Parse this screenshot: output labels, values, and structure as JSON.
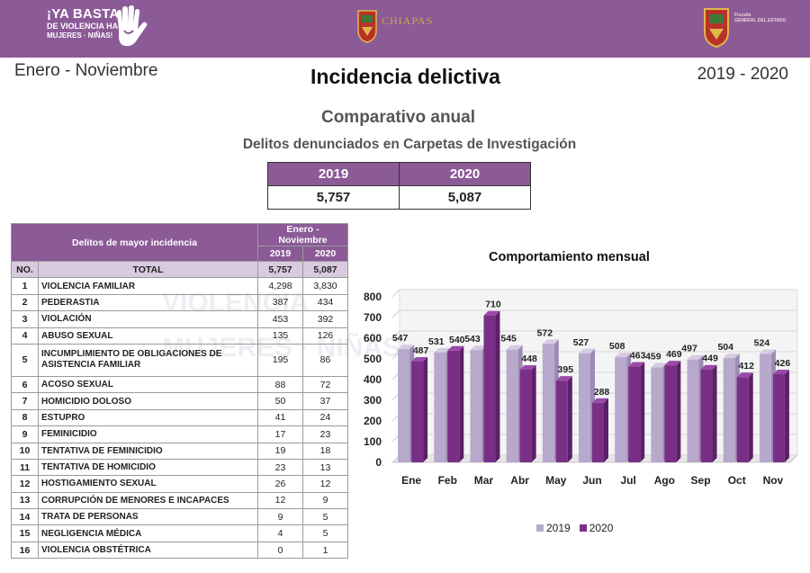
{
  "header": {
    "left_logo": [
      "¡YA BASTA",
      "DE VIOLENCIA HACIA",
      "MUJERES · NIÑAS!"
    ],
    "center_logo": "CHIAPAS",
    "right_logo": [
      "Fiscalía",
      "GENERAL DEL ESTADO"
    ]
  },
  "period": "Enero - Noviembre",
  "title": "Incidencia delictiva",
  "years": "2019 - 2020",
  "subtitle1": "Comparativo anual",
  "subtitle2": "Delitos denunciados en Carpetas de Investigación",
  "comparison": {
    "y1": "2019",
    "y2": "2020",
    "v1": "5,757",
    "v2": "5,087"
  },
  "table": {
    "title": "Delitos de mayor incidencia",
    "period": "Enero - Noviembre",
    "col1": "2019",
    "col2": "2020",
    "no_label": "NO.",
    "total_label": "TOTAL",
    "total1": "5,757",
    "total2": "5,087",
    "rows": [
      {
        "no": "1",
        "name": "VIOLENCIA FAMILIAR",
        "v2019": "4,298",
        "v2020": "3,830"
      },
      {
        "no": "2",
        "name": "PEDERASTIA",
        "v2019": "387",
        "v2020": "434"
      },
      {
        "no": "3",
        "name": "VIOLACIÓN",
        "v2019": "453",
        "v2020": "392"
      },
      {
        "no": "4",
        "name": "ABUSO SEXUAL",
        "v2019": "135",
        "v2020": "126"
      },
      {
        "no": "5",
        "name": "INCUMPLIMIENTO DE OBLIGACIONES DE ASISTENCIA FAMILIAR",
        "v2019": "195",
        "v2020": "86"
      },
      {
        "no": "6",
        "name": "ACOSO SEXUAL",
        "v2019": "88",
        "v2020": "72"
      },
      {
        "no": "7",
        "name": "HOMICIDIO DOLOSO",
        "v2019": "50",
        "v2020": "37"
      },
      {
        "no": "8",
        "name": "ESTUPRO",
        "v2019": "41",
        "v2020": "24"
      },
      {
        "no": "9",
        "name": "FEMINICIDIO",
        "v2019": "17",
        "v2020": "23"
      },
      {
        "no": "10",
        "name": "TENTATIVA DE FEMINICIDIO",
        "v2019": "19",
        "v2020": "18"
      },
      {
        "no": "11",
        "name": "TENTATIVA DE HOMICIDIO",
        "v2019": "23",
        "v2020": "13"
      },
      {
        "no": "12",
        "name": "HOSTIGAMIENTO SEXUAL",
        "v2019": "26",
        "v2020": "12"
      },
      {
        "no": "13",
        "name": "CORRUPCIÓN DE MENORES E INCAPACES",
        "v2019": "12",
        "v2020": "9"
      },
      {
        "no": "14",
        "name": "TRATA DE PERSONAS",
        "v2019": "9",
        "v2020": "5"
      },
      {
        "no": "15",
        "name": "NEGLIGENCIA MÉDICA",
        "v2019": "4",
        "v2020": "5"
      },
      {
        "no": "16",
        "name": "VIOLENCIA OBSTÉTRICA",
        "v2019": "0",
        "v2020": "1"
      }
    ]
  },
  "chart_data": {
    "type": "bar",
    "title": "Comportamiento mensual",
    "categories": [
      "Ene",
      "Feb",
      "Mar",
      "Abr",
      "May",
      "Jun",
      "Jul",
      "Ago",
      "Sep",
      "Oct",
      "Nov"
    ],
    "series": [
      {
        "name": "2019",
        "values": [
          547,
          531,
          543,
          545,
          572,
          527,
          508,
          459,
          497,
          504,
          524
        ],
        "color": "#b8a8cc"
      },
      {
        "name": "2020",
        "values": [
          487,
          540,
          710,
          448,
          395,
          288,
          463,
          469,
          449,
          412,
          426
        ],
        "color": "#7a2f87"
      }
    ],
    "ylim": [
      0,
      800
    ],
    "yticks": [
      0,
      100,
      200,
      300,
      400,
      500,
      600,
      700,
      800
    ],
    "legend": "bottom"
  }
}
